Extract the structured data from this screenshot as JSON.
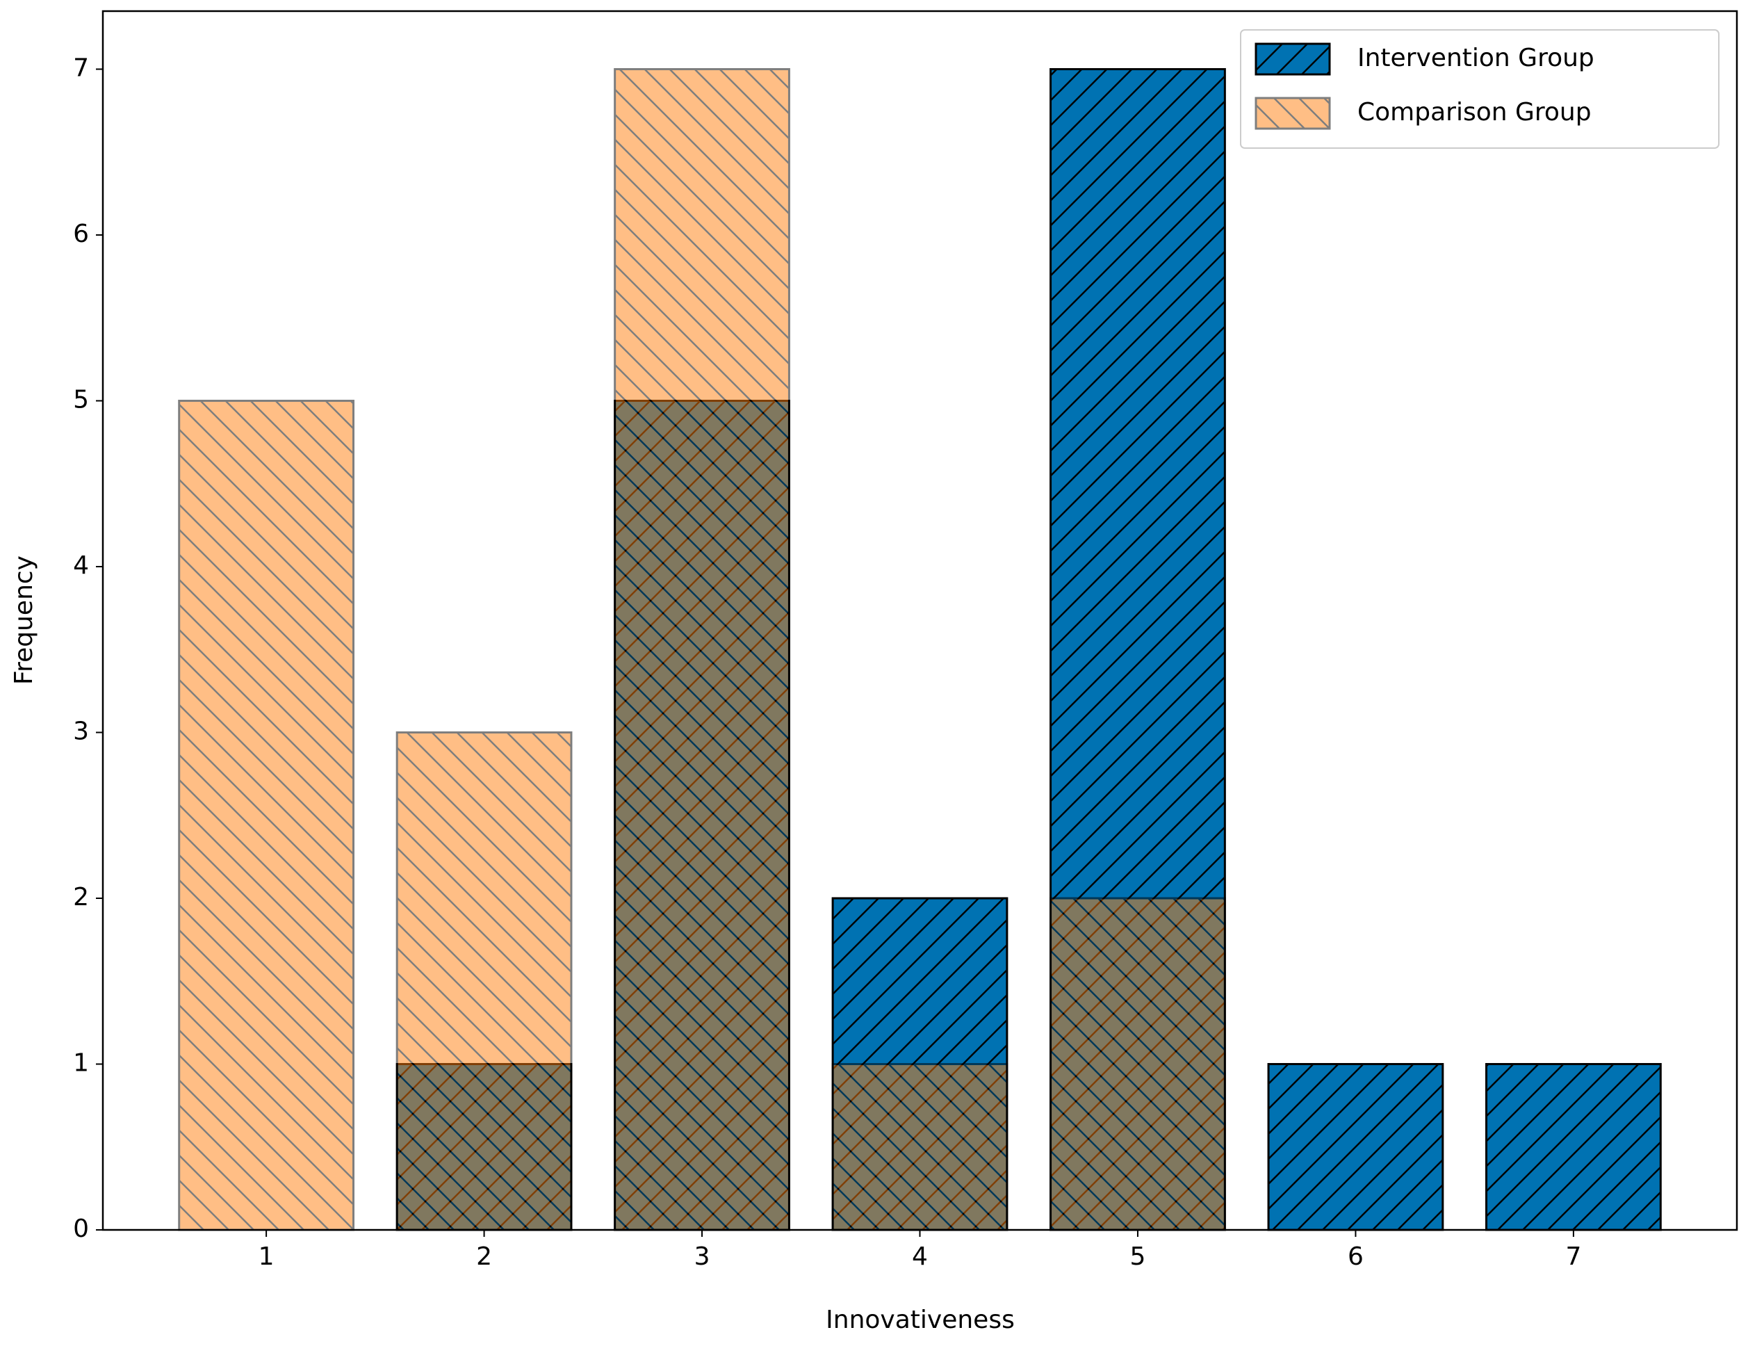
{
  "chart_data": {
    "type": "bar",
    "x_label": "Innovativeness",
    "y_label": "Frequency",
    "x": [
      1,
      2,
      3,
      4,
      5,
      6,
      7
    ],
    "bar_width": 0.8,
    "series": [
      {
        "name": "Intervention Group",
        "color": "#0072b2",
        "hatch": "/",
        "alpha": 1,
        "values": [
          0,
          1,
          5,
          2,
          7,
          1,
          1
        ]
      },
      {
        "name": "Comparison Group",
        "color": "#ff7f0e",
        "hatch": "\\",
        "alpha": 0.5,
        "values": [
          5,
          3,
          7,
          1,
          2,
          0,
          0
        ]
      }
    ],
    "xlim": [
      0.25,
      7.75
    ],
    "xticks": [
      1,
      2,
      3,
      4,
      5,
      6,
      7
    ],
    "ylim": [
      0,
      7.35
    ],
    "yticks": [
      0,
      1,
      2,
      3,
      4,
      5,
      6,
      7
    ],
    "grid": false,
    "legend": "upper right"
  }
}
